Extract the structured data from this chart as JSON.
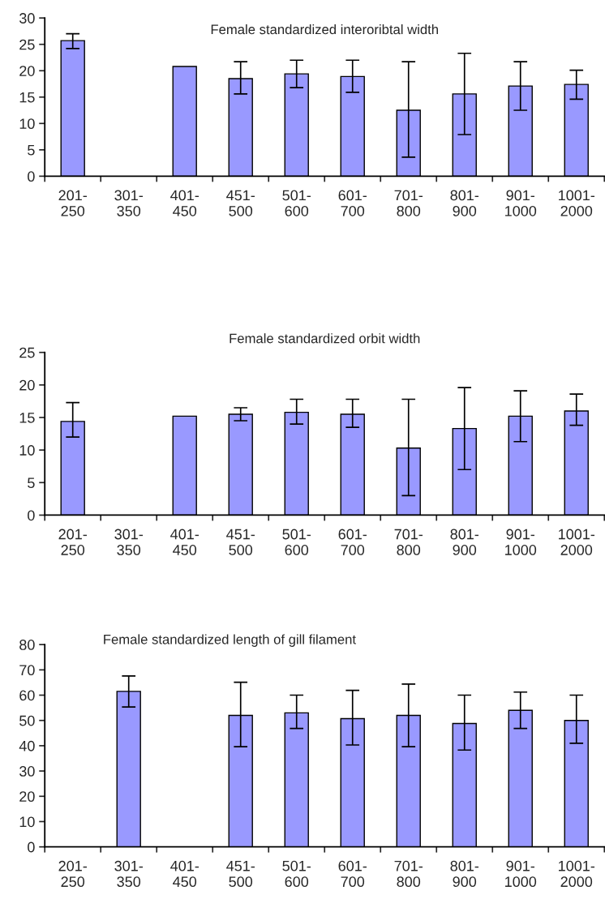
{
  "chart_data": [
    {
      "type": "bar",
      "title": "Female standardized interoribtal width",
      "categories": [
        "201-\n250",
        "301-\n350",
        "401-\n450",
        "451-\n500",
        "501-\n600",
        "601-\n700",
        "701-\n800",
        "801-\n900",
        "901-\n1000",
        "1001-\n2000"
      ],
      "color": "#9999ff",
      "values": [
        25.7,
        null,
        20.8,
        18.5,
        19.4,
        18.9,
        12.5,
        15.6,
        17.1,
        17.4
      ],
      "errors": [
        [
          24.2,
          27.0
        ],
        null,
        null,
        [
          15.6,
          21.7
        ],
        [
          16.8,
          22.0
        ],
        [
          15.9,
          22.0
        ],
        [
          3.6,
          21.7
        ],
        [
          7.9,
          23.3
        ],
        [
          12.5,
          21.7
        ],
        [
          14.6,
          20.1
        ]
      ],
      "ylim": [
        0,
        30
      ],
      "yticks": [
        0,
        5,
        10,
        15,
        20,
        25,
        30
      ],
      "grid": false,
      "legend": false
    },
    {
      "type": "bar",
      "title": "Female standardized orbit width",
      "categories": [
        "201-\n250",
        "301-\n350",
        "401-\n450",
        "451-\n500",
        "501-\n600",
        "601-\n700",
        "701-\n800",
        "801-\n900",
        "901-\n1000",
        "1001-\n2000"
      ],
      "color": "#9999ff",
      "values": [
        14.4,
        null,
        15.2,
        15.5,
        15.8,
        15.5,
        10.3,
        13.3,
        15.2,
        16.0
      ],
      "errors": [
        [
          12.0,
          17.3
        ],
        null,
        null,
        [
          14.5,
          16.5
        ],
        [
          14.0,
          17.8
        ],
        [
          13.5,
          17.8
        ],
        [
          3.0,
          17.8
        ],
        [
          7.0,
          19.6
        ],
        [
          11.3,
          19.1
        ],
        [
          13.8,
          18.6
        ]
      ],
      "ylim": [
        0,
        25
      ],
      "yticks": [
        0,
        5,
        10,
        15,
        20,
        25
      ],
      "grid": false,
      "legend": false
    },
    {
      "type": "bar",
      "title": "Female standardized length of gill filament",
      "categories": [
        "201-\n250",
        "301-\n350",
        "401-\n450",
        "451-\n500",
        "501-\n600",
        "601-\n700",
        "701-\n800",
        "801-\n900",
        "901-\n1000",
        "1001-\n2000"
      ],
      "color": "#9999ff",
      "values": [
        null,
        61.5,
        null,
        52,
        53,
        50.7,
        52,
        48.8,
        54,
        50
      ],
      "errors": [
        null,
        [
          55.3,
          67.6
        ],
        null,
        [
          39.6,
          65.1
        ],
        [
          46.8,
          60
        ],
        [
          40.3,
          61.9
        ],
        [
          39.6,
          64.4
        ],
        [
          38.3,
          60
        ],
        [
          46.8,
          61.2
        ],
        [
          41,
          60
        ]
      ],
      "ylim": [
        0,
        80
      ],
      "yticks": [
        0,
        10,
        20,
        30,
        40,
        50,
        60,
        70,
        80
      ],
      "grid": false,
      "legend": false
    }
  ]
}
